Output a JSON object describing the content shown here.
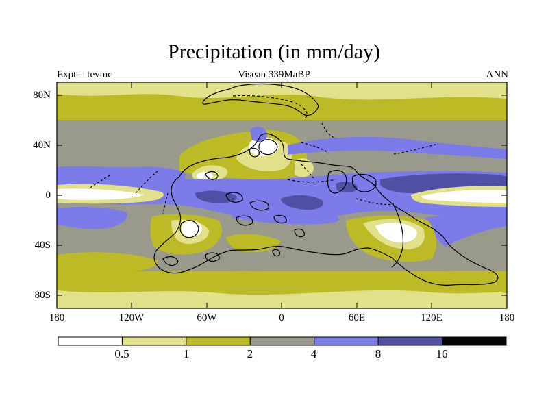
{
  "title": "Precipitation (in mm/day)",
  "subtitle_left": "Expt = tevmc",
  "subtitle_center": "Visean 339MaBP",
  "subtitle_right": "ANN",
  "y_ticks": [
    "80N",
    "40N",
    "0",
    "40S",
    "80S"
  ],
  "x_ticks": [
    "180",
    "120W",
    "60W",
    "0",
    "60E",
    "120E",
    "180"
  ],
  "colorbar": {
    "colors": [
      "#ffffff",
      "#e3e08b",
      "#bdba25",
      "#9a9a8c",
      "#7b7bea",
      "#4f4fa3",
      "#050505"
    ],
    "labels": [
      "0.5",
      "1",
      "2",
      "4",
      "8",
      "16"
    ]
  },
  "palette": {
    "lt05": "#ffffff",
    "b05_1": "#e3e08b",
    "b1_2": "#bdba25",
    "b2_4": "#9a9a8c",
    "b4_8": "#7b7bea",
    "b8_16": "#4f4fa3"
  }
}
